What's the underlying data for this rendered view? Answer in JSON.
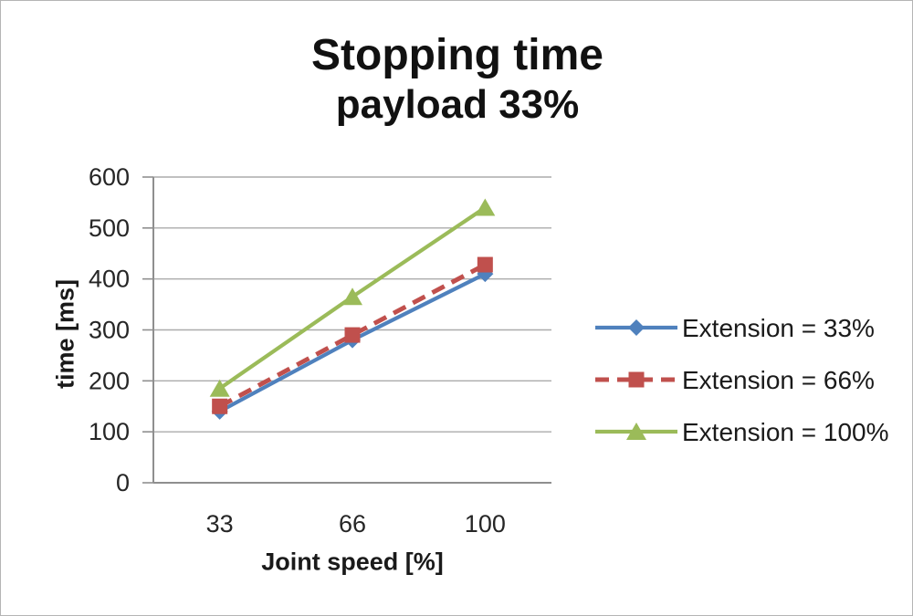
{
  "chart_data": {
    "type": "line",
    "title": "Stopping time",
    "subtitle": "payload 33%",
    "xlabel": "Joint speed [%]",
    "ylabel": "time [ms]",
    "categories": [
      "33",
      "66",
      "100"
    ],
    "ylim": [
      0,
      600
    ],
    "yticks": [
      0,
      100,
      200,
      300,
      400,
      500,
      600
    ],
    "grid": true,
    "legend_position": "right",
    "series": [
      {
        "name": "Extension = 33%",
        "values": [
          140,
          280,
          410
        ],
        "color": "#4F81BD",
        "marker": "diamond",
        "line": "solid"
      },
      {
        "name": "Extension = 66%",
        "values": [
          150,
          290,
          428
        ],
        "color": "#C0504D",
        "marker": "square",
        "line": "dashed"
      },
      {
        "name": "Extension = 100%",
        "values": [
          185,
          365,
          540
        ],
        "color": "#9BBB59",
        "marker": "triangle",
        "line": "solid"
      }
    ],
    "axis_color": "#8f8f8f",
    "grid_color": "#ababab",
    "tick_label_color": "#262626"
  }
}
